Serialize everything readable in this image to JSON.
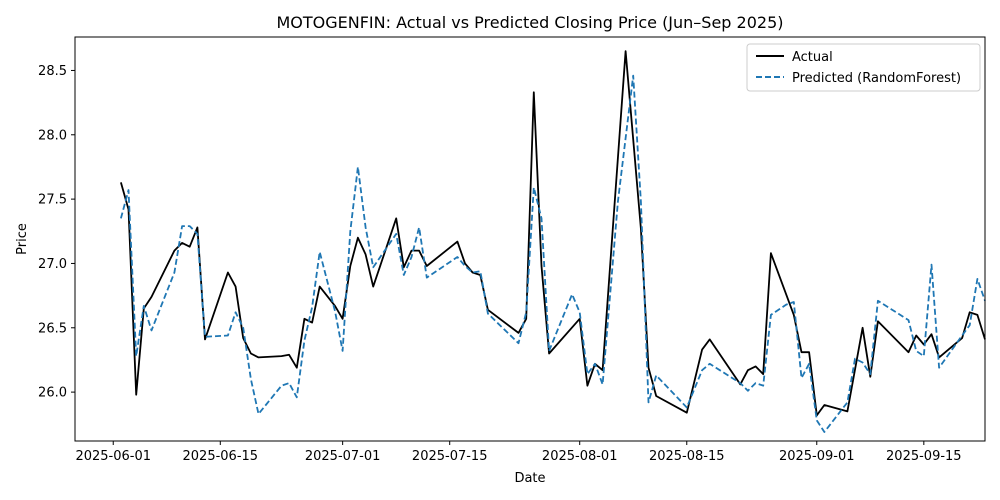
{
  "chart_data": {
    "type": "line",
    "title": "MOTOGENFIN: Actual vs Predicted Closing Price (Jun–Sep 2025)",
    "xlabel": "Date",
    "ylabel": "Price",
    "xlim": [
      "2025-05-27",
      "2025-09-23"
    ],
    "ylim": [
      25.62,
      28.76
    ],
    "xticks": [
      "2025-06-01",
      "2025-06-15",
      "2025-07-01",
      "2025-07-15",
      "2025-08-01",
      "2025-08-15",
      "2025-09-01",
      "2025-09-15"
    ],
    "yticks": [
      26.0,
      26.5,
      27.0,
      27.5,
      28.0,
      28.5
    ],
    "ytick_labels": [
      "26.0",
      "26.5",
      "27.0",
      "27.5",
      "28.0",
      "28.5"
    ],
    "grid": false,
    "legend_position": "top-right",
    "series": [
      {
        "name": "Actual",
        "color": "#000000",
        "style": "solid",
        "points": [
          [
            "2025-06-02",
            27.63
          ],
          [
            "2025-06-03",
            27.42
          ],
          [
            "2025-06-04",
            25.98
          ],
          [
            "2025-06-05",
            26.65
          ],
          [
            "2025-06-06",
            26.74
          ],
          [
            "2025-06-09",
            27.1
          ],
          [
            "2025-06-10",
            27.16
          ],
          [
            "2025-06-11",
            27.13
          ],
          [
            "2025-06-12",
            27.28
          ],
          [
            "2025-06-13",
            26.41
          ],
          [
            "2025-06-16",
            26.93
          ],
          [
            "2025-06-17",
            26.82
          ],
          [
            "2025-06-18",
            26.42
          ],
          [
            "2025-06-19",
            26.3
          ],
          [
            "2025-06-20",
            26.27
          ],
          [
            "2025-06-23",
            26.28
          ],
          [
            "2025-06-24",
            26.29
          ],
          [
            "2025-06-25",
            26.19
          ],
          [
            "2025-06-26",
            26.57
          ],
          [
            "2025-06-27",
            26.54
          ],
          [
            "2025-06-28",
            26.82
          ],
          [
            "2025-06-30",
            26.67
          ],
          [
            "2025-07-01",
            26.57
          ],
          [
            "2025-07-02",
            26.98
          ],
          [
            "2025-07-03",
            27.2
          ],
          [
            "2025-07-04",
            27.07
          ],
          [
            "2025-07-05",
            26.82
          ],
          [
            "2025-07-08",
            27.35
          ],
          [
            "2025-07-09",
            26.97
          ],
          [
            "2025-07-10",
            27.1
          ],
          [
            "2025-07-11",
            27.1
          ],
          [
            "2025-07-12",
            26.98
          ],
          [
            "2025-07-16",
            27.17
          ],
          [
            "2025-07-17",
            27.0
          ],
          [
            "2025-07-18",
            26.93
          ],
          [
            "2025-07-19",
            26.91
          ],
          [
            "2025-07-20",
            26.64
          ],
          [
            "2025-07-24",
            26.46
          ],
          [
            "2025-07-25",
            26.57
          ],
          [
            "2025-07-26",
            28.33
          ],
          [
            "2025-07-27",
            26.98
          ],
          [
            "2025-07-28",
            26.3
          ],
          [
            "2025-08-01",
            26.57
          ],
          [
            "2025-08-02",
            26.05
          ],
          [
            "2025-08-03",
            26.22
          ],
          [
            "2025-08-04",
            26.17
          ],
          [
            "2025-08-07",
            28.65
          ],
          [
            "2025-08-09",
            27.27
          ],
          [
            "2025-08-10",
            26.19
          ],
          [
            "2025-08-11",
            25.97
          ],
          [
            "2025-08-15",
            25.84
          ],
          [
            "2025-08-17",
            26.33
          ],
          [
            "2025-08-18",
            26.41
          ],
          [
            "2025-08-22",
            26.06
          ],
          [
            "2025-08-23",
            26.17
          ],
          [
            "2025-08-24",
            26.2
          ],
          [
            "2025-08-25",
            26.14
          ],
          [
            "2025-08-26",
            27.08
          ],
          [
            "2025-08-29",
            26.6
          ],
          [
            "2025-08-30",
            26.31
          ],
          [
            "2025-08-31",
            26.31
          ],
          [
            "2025-09-01",
            25.82
          ],
          [
            "2025-09-02",
            25.9
          ],
          [
            "2025-09-05",
            25.85
          ],
          [
            "2025-09-07",
            26.5
          ],
          [
            "2025-09-08",
            26.12
          ],
          [
            "2025-09-09",
            26.55
          ],
          [
            "2025-09-13",
            26.31
          ],
          [
            "2025-09-14",
            26.44
          ],
          [
            "2025-09-15",
            26.37
          ],
          [
            "2025-09-16",
            26.45
          ],
          [
            "2025-09-17",
            26.27
          ],
          [
            "2025-09-20",
            26.42
          ],
          [
            "2025-09-21",
            26.62
          ],
          [
            "2025-09-22",
            26.6
          ],
          [
            "2025-09-23",
            26.41
          ]
        ]
      },
      {
        "name": "Predicted (RandomForest)",
        "color": "#1f77b4",
        "style": "dashed",
        "points": [
          [
            "2025-06-02",
            27.35
          ],
          [
            "2025-06-03",
            27.57
          ],
          [
            "2025-06-04",
            26.28
          ],
          [
            "2025-06-05",
            26.67
          ],
          [
            "2025-06-06",
            26.48
          ],
          [
            "2025-06-09",
            26.93
          ],
          [
            "2025-06-10",
            27.29
          ],
          [
            "2025-06-11",
            27.29
          ],
          [
            "2025-06-12",
            27.23
          ],
          [
            "2025-06-13",
            26.43
          ],
          [
            "2025-06-16",
            26.44
          ],
          [
            "2025-06-17",
            26.62
          ],
          [
            "2025-06-18",
            26.5
          ],
          [
            "2025-06-19",
            26.1
          ],
          [
            "2025-06-20",
            25.83
          ],
          [
            "2025-06-23",
            26.05
          ],
          [
            "2025-06-24",
            26.07
          ],
          [
            "2025-06-25",
            25.96
          ],
          [
            "2025-06-26",
            26.4
          ],
          [
            "2025-06-27",
            26.66
          ],
          [
            "2025-06-28",
            27.09
          ],
          [
            "2025-06-30",
            26.63
          ],
          [
            "2025-07-01",
            26.32
          ],
          [
            "2025-07-02",
            27.25
          ],
          [
            "2025-07-03",
            27.75
          ],
          [
            "2025-07-04",
            27.28
          ],
          [
            "2025-07-05",
            26.97
          ],
          [
            "2025-07-08",
            27.23
          ],
          [
            "2025-07-09",
            26.91
          ],
          [
            "2025-07-10",
            27.05
          ],
          [
            "2025-07-11",
            27.28
          ],
          [
            "2025-07-12",
            26.89
          ],
          [
            "2025-07-16",
            27.05
          ],
          [
            "2025-07-17",
            26.98
          ],
          [
            "2025-07-18",
            26.93
          ],
          [
            "2025-07-19",
            26.94
          ],
          [
            "2025-07-20",
            26.61
          ],
          [
            "2025-07-24",
            26.38
          ],
          [
            "2025-07-25",
            26.62
          ],
          [
            "2025-07-26",
            27.59
          ],
          [
            "2025-07-27",
            27.35
          ],
          [
            "2025-07-28",
            26.32
          ],
          [
            "2025-07-31",
            26.76
          ],
          [
            "2025-08-01",
            26.62
          ],
          [
            "2025-08-02",
            26.14
          ],
          [
            "2025-08-03",
            26.22
          ],
          [
            "2025-08-04",
            26.06
          ],
          [
            "2025-08-06",
            27.48
          ],
          [
            "2025-08-08",
            28.46
          ],
          [
            "2025-08-09",
            27.48
          ],
          [
            "2025-08-10",
            25.92
          ],
          [
            "2025-08-11",
            26.13
          ],
          [
            "2025-08-15",
            25.88
          ],
          [
            "2025-08-17",
            26.17
          ],
          [
            "2025-08-18",
            26.22
          ],
          [
            "2025-08-22",
            26.07
          ],
          [
            "2025-08-23",
            26.01
          ],
          [
            "2025-08-24",
            26.07
          ],
          [
            "2025-08-25",
            26.05
          ],
          [
            "2025-08-26",
            26.6
          ],
          [
            "2025-08-28",
            26.68
          ],
          [
            "2025-08-29",
            26.7
          ],
          [
            "2025-08-30",
            26.11
          ],
          [
            "2025-08-31",
            26.22
          ],
          [
            "2025-09-01",
            25.78
          ],
          [
            "2025-09-02",
            25.69
          ],
          [
            "2025-09-05",
            25.92
          ],
          [
            "2025-09-06",
            26.26
          ],
          [
            "2025-09-07",
            26.23
          ],
          [
            "2025-09-08",
            26.14
          ],
          [
            "2025-09-09",
            26.71
          ],
          [
            "2025-09-13",
            26.56
          ],
          [
            "2025-09-14",
            26.32
          ],
          [
            "2025-09-15",
            26.28
          ],
          [
            "2025-09-16",
            26.99
          ],
          [
            "2025-09-17",
            26.19
          ],
          [
            "2025-09-20",
            26.44
          ],
          [
            "2025-09-21",
            26.52
          ],
          [
            "2025-09-22",
            26.88
          ],
          [
            "2025-09-23",
            26.71
          ]
        ]
      }
    ]
  }
}
